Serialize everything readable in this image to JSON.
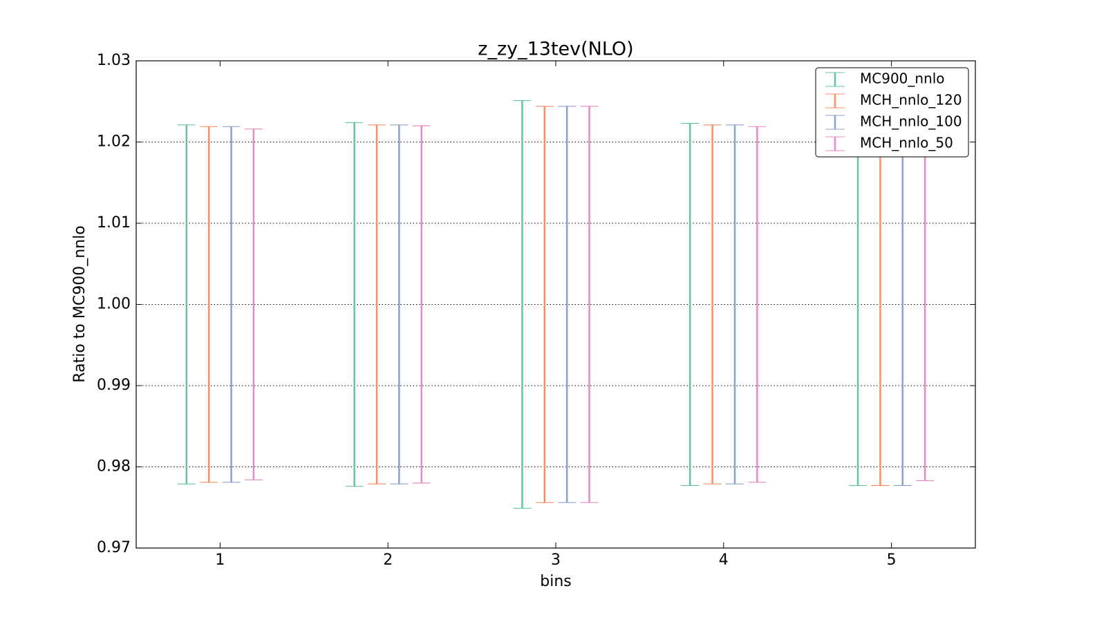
{
  "chart_data": {
    "type": "errorbar",
    "title": "z_zy_13tev(NLO)",
    "x_label": "bins",
    "y_label": "Ratio to MC900_nnlo",
    "x": [
      1,
      2,
      3,
      4,
      5
    ],
    "series": [
      {
        "name": "MC900_nnlo",
        "color": "#66c2a5",
        "values": [
          1,
          1,
          1,
          1,
          1
        ],
        "errors": [
          0.0221,
          0.0224,
          0.0251,
          0.0223,
          0.0223
        ]
      },
      {
        "name": "MCH_nnlo_120",
        "color": "#fc8d62",
        "values": [
          1,
          1,
          1,
          1,
          1
        ],
        "errors": [
          0.0219,
          0.0221,
          0.0244,
          0.0221,
          0.0223
        ]
      },
      {
        "name": "MCH_nnlo_100",
        "color": "#8da0cb",
        "values": [
          1,
          1,
          1,
          1,
          1
        ],
        "errors": [
          0.0219,
          0.0221,
          0.0244,
          0.0221,
          0.0223
        ]
      },
      {
        "name": "MCH_nnlo_50",
        "color": "#e78ac3",
        "values": [
          1,
          1,
          1,
          1,
          1
        ],
        "errors": [
          0.0216,
          0.022,
          0.0244,
          0.0219,
          0.0217
        ]
      }
    ],
    "xlim": [
      0.5,
      5.5
    ],
    "xticks": [
      1,
      2,
      3,
      4,
      5
    ],
    "ylim": [
      0.97,
      1.03
    ],
    "yticks": [
      0.97,
      0.98,
      0.99,
      {
        "value": 1,
        "label": "1.00"
      },
      1.01,
      1.02,
      1.03
    ],
    "grid": true,
    "legend": "upper right"
  }
}
